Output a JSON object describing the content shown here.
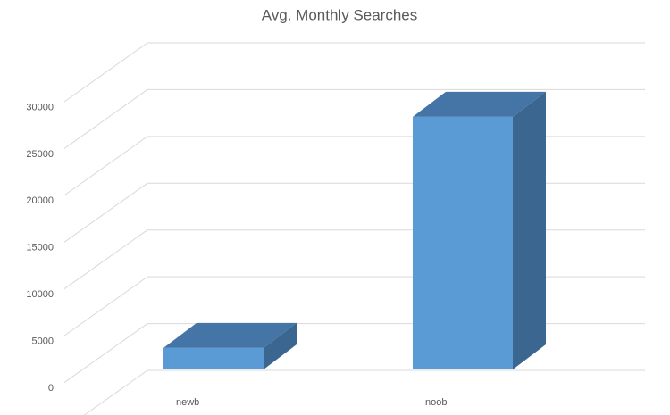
{
  "chart_data": {
    "type": "bar3d",
    "title": "Avg. Monthly Searches",
    "categories": [
      "newb",
      "noob"
    ],
    "values": [
      2300,
      27000
    ],
    "colors": {
      "front": "#5b9bd5",
      "top": "#4575a6",
      "side": "#3a6690"
    },
    "ylim": [
      0,
      35000
    ],
    "yticks": [
      0,
      5000,
      10000,
      15000,
      20000,
      25000,
      30000
    ],
    "grid": true
  }
}
